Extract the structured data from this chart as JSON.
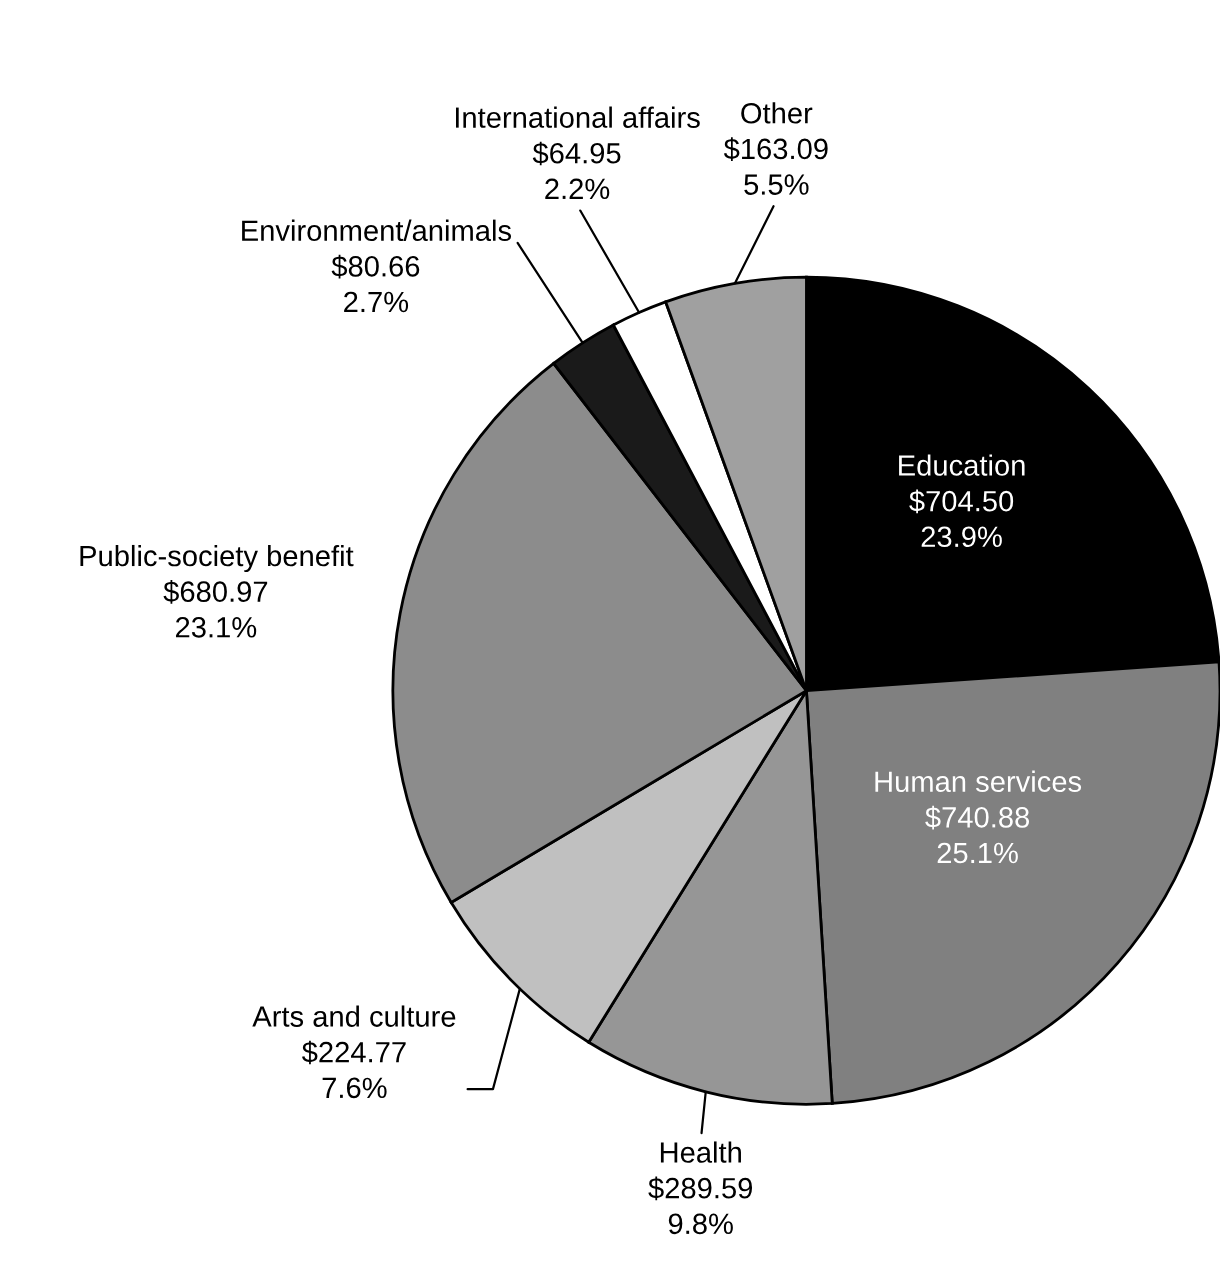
{
  "chart_data": {
    "type": "pie",
    "categories": [
      "Education",
      "Human services",
      "Health",
      "Arts and culture",
      "Public-society benefit",
      "Environment/animals",
      "International affairs",
      "Other"
    ],
    "values": [
      704.5,
      740.88,
      289.59,
      224.77,
      680.97,
      80.66,
      64.95,
      163.09
    ],
    "value_labels": [
      "$704.50\n23.9%",
      "$740.88\n25.1%",
      "$289.59\n9.8%",
      "$224.77\n7.6%",
      "$680.97\n23.1%",
      "$80.66\n2.7%",
      "$64.95\n2.2%",
      "$163.09\n5.5%"
    ],
    "colors": [
      "#000000",
      "#808080",
      "#969696",
      "#c0c0c0",
      "#8c8c8c",
      "#1a1a1a",
      "#ffffff",
      "#a0a0a0"
    ],
    "legend": false
  }
}
